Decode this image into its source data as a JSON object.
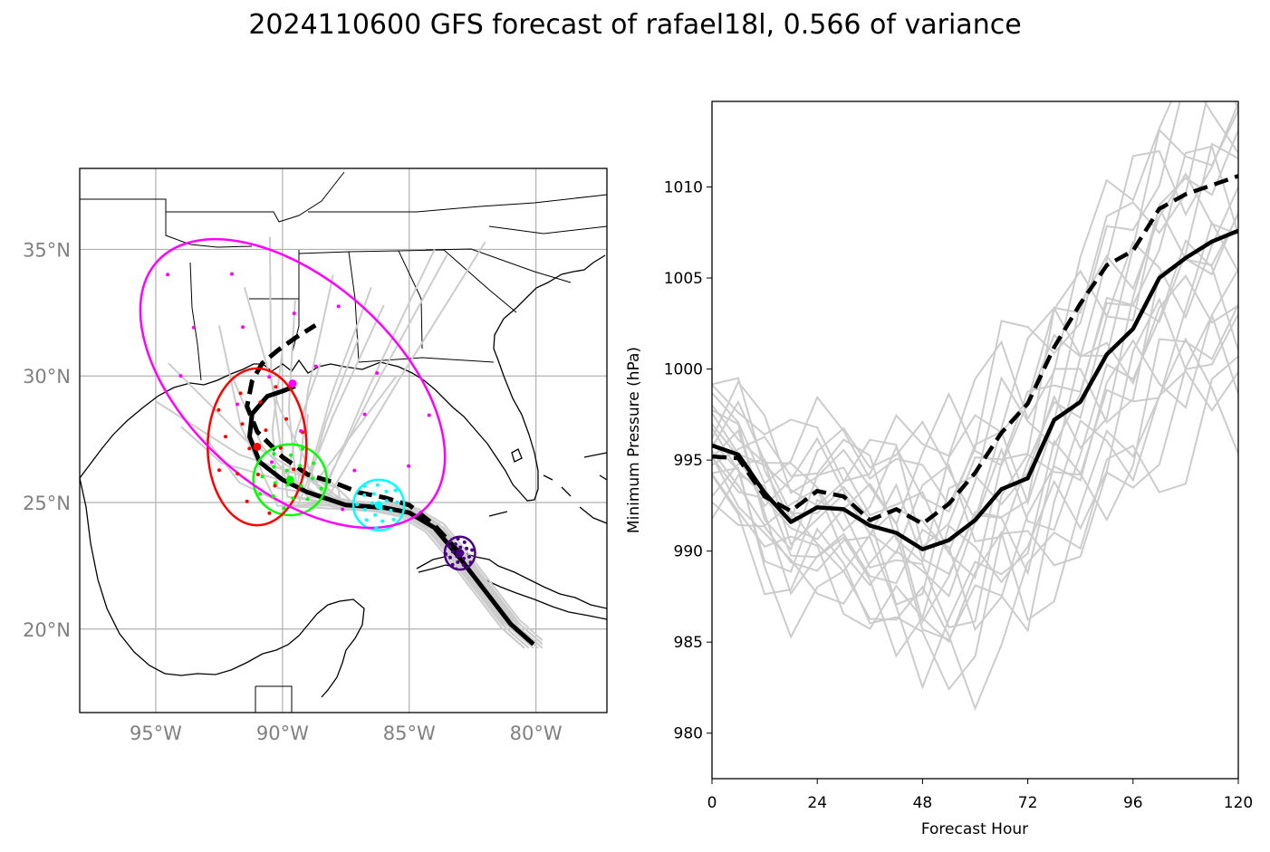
{
  "title": "2024110600 GFS forecast of rafael18l, 0.566 of variance",
  "chart_data": [
    {
      "type": "map",
      "panel": "track",
      "lon_range": [
        -98,
        -77.2
      ],
      "lat_range": [
        16.7,
        38.2
      ],
      "lon_ticks": [
        -95,
        -90,
        -85,
        -80
      ],
      "lon_tick_labels": [
        "95°W",
        "90°W",
        "85°W",
        "80°W"
      ],
      "lat_ticks": [
        20,
        25,
        30,
        35
      ],
      "lat_tick_labels": [
        "20°N",
        "25°N",
        "30°N",
        "35°N"
      ],
      "grid": true,
      "colors": {
        "ensemble": "#cccccc",
        "track": "#000000",
        "coast": "#000000",
        "grid": "#b0b0b0",
        "tick": "#808080"
      },
      "mean_track": [
        [
          -80.1,
          19.4
        ],
        [
          -81.0,
          20.2
        ],
        [
          -82.0,
          21.5
        ],
        [
          -83.0,
          22.8
        ],
        [
          -84.0,
          24.0
        ],
        [
          -85.0,
          24.6
        ],
        [
          -86.0,
          24.8
        ],
        [
          -87.5,
          24.9
        ],
        [
          -89.0,
          25.4
        ],
        [
          -90.0,
          25.9
        ],
        [
          -90.9,
          26.6
        ],
        [
          -91.3,
          27.6
        ],
        [
          -91.2,
          28.5
        ],
        [
          -90.6,
          29.2
        ],
        [
          -90.0,
          29.4
        ],
        [
          -89.5,
          29.6
        ]
      ],
      "dashed_track": [
        [
          -83.0,
          23.0
        ],
        [
          -84.0,
          24.1
        ],
        [
          -85.0,
          24.9
        ],
        [
          -86.0,
          25.2
        ],
        [
          -87.0,
          25.4
        ],
        [
          -88.0,
          25.8
        ],
        [
          -89.0,
          26.1
        ],
        [
          -90.0,
          26.8
        ],
        [
          -91.0,
          27.8
        ],
        [
          -91.4,
          28.8
        ],
        [
          -91.2,
          29.8
        ],
        [
          -90.8,
          30.5
        ],
        [
          -90.2,
          31.0
        ],
        [
          -89.5,
          31.5
        ],
        [
          -88.7,
          32.0
        ]
      ],
      "uncertainty_ellipses": [
        {
          "color": "#4b0082",
          "center": [
            -83.0,
            23.0
          ],
          "width_deg": 1.2,
          "height_deg": 1.3,
          "angle": 0
        },
        {
          "color": "#00ffff",
          "center": [
            -86.2,
            24.9
          ],
          "width_deg": 2.0,
          "height_deg": 2.0,
          "angle": 0
        },
        {
          "color": "#00ff00",
          "center": [
            -89.7,
            25.9
          ],
          "width_deg": 2.9,
          "height_deg": 2.8,
          "angle": 0
        },
        {
          "color": "#ff0000",
          "center": [
            -91.0,
            27.2
          ],
          "width_deg": 3.9,
          "height_deg": 6.2,
          "angle": 0
        },
        {
          "color": "#ff00ff",
          "center": [
            -89.6,
            29.7
          ],
          "width_deg": 8.2,
          "height_deg": 14.4,
          "angle": -48
        }
      ]
    },
    {
      "type": "line",
      "panel": "pressure",
      "xlabel": "Forecast Hour",
      "ylabel": "Minimum Pressure (hPa)",
      "xlim": [
        0,
        120
      ],
      "ylim": [
        977.5,
        1014.7
      ],
      "x_ticks": [
        0,
        24,
        48,
        72,
        96,
        120
      ],
      "y_ticks": [
        980,
        985,
        990,
        995,
        1000,
        1005,
        1010
      ],
      "x": [
        0,
        6,
        12,
        18,
        24,
        30,
        36,
        42,
        48,
        54,
        60,
        66,
        72,
        78,
        84,
        90,
        96,
        102,
        108,
        114,
        120
      ],
      "series": [
        {
          "style": "solid",
          "color": "#000000",
          "values": [
            995.8,
            995.3,
            993.2,
            991.6,
            992.4,
            992.3,
            991.4,
            991.0,
            990.1,
            990.6,
            991.7,
            993.4,
            994.0,
            997.2,
            998.2,
            1000.8,
            1002.2,
            1005.0,
            1006.1,
            1007.0,
            1007.6
          ]
        },
        {
          "style": "dashed",
          "color": "#000000",
          "values": [
            995.2,
            995.1,
            993.0,
            992.2,
            993.3,
            993.0,
            991.7,
            992.3,
            991.5,
            992.6,
            994.3,
            996.5,
            998.1,
            1001.2,
            1003.6,
            1005.7,
            1006.5,
            1008.8,
            1009.6,
            1010.1,
            1010.6
          ]
        }
      ],
      "ensemble_color": "#cccccc"
    }
  ]
}
